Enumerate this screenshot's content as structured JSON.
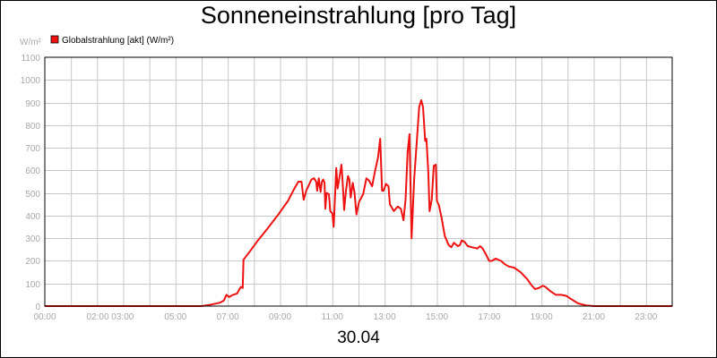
{
  "chart_data": {
    "type": "line",
    "title": "Sonneneinstrahlung [pro Tag]",
    "date": "30.04",
    "ylabel": "W/m²",
    "ylim": [
      0,
      1100
    ],
    "yticks": [
      0,
      100,
      200,
      300,
      400,
      500,
      600,
      700,
      800,
      900,
      1000,
      1100
    ],
    "xlim": [
      0,
      24
    ],
    "xticks": [
      {
        "label": "00:00",
        "x": 0
      },
      {
        "label": "02:00 03:00",
        "x": 2.5
      },
      {
        "label": "05:00",
        "x": 5
      },
      {
        "label": "07:00",
        "x": 7
      },
      {
        "label": "09:00",
        "x": 9
      },
      {
        "label": "11:00",
        "x": 11
      },
      {
        "label": "13:00",
        "x": 13
      },
      {
        "label": "15:00",
        "x": 15
      },
      {
        "label": "17:00",
        "x": 17
      },
      {
        "label": "19:00",
        "x": 19
      },
      {
        "label": "21:00",
        "x": 21
      },
      {
        "label": "23:00",
        "x": 23
      }
    ],
    "grid": true,
    "legend_position": "top-left",
    "series": [
      {
        "name": "Globalstrahlung [akt] (W/m²)",
        "color": "#ee1111",
        "points": [
          [
            0.0,
            0
          ],
          [
            6.0,
            0
          ],
          [
            6.3,
            5
          ],
          [
            6.7,
            15
          ],
          [
            6.85,
            25
          ],
          [
            6.95,
            50
          ],
          [
            7.05,
            40
          ],
          [
            7.2,
            50
          ],
          [
            7.35,
            55
          ],
          [
            7.45,
            75
          ],
          [
            7.5,
            85
          ],
          [
            7.57,
            80
          ],
          [
            7.6,
            205
          ],
          [
            7.9,
            250
          ],
          [
            8.15,
            290
          ],
          [
            8.5,
            340
          ],
          [
            8.9,
            400
          ],
          [
            9.3,
            465
          ],
          [
            9.55,
            520
          ],
          [
            9.7,
            550
          ],
          [
            9.82,
            550
          ],
          [
            9.9,
            470
          ],
          [
            10.0,
            510
          ],
          [
            10.2,
            560
          ],
          [
            10.3,
            565
          ],
          [
            10.38,
            550
          ],
          [
            10.42,
            510
          ],
          [
            10.48,
            565
          ],
          [
            10.55,
            505
          ],
          [
            10.6,
            550
          ],
          [
            10.65,
            560
          ],
          [
            10.7,
            545
          ],
          [
            10.73,
            430
          ],
          [
            10.78,
            500
          ],
          [
            10.87,
            495
          ],
          [
            10.92,
            420
          ],
          [
            11.0,
            410
          ],
          [
            11.05,
            350
          ],
          [
            11.15,
            610
          ],
          [
            11.2,
            520
          ],
          [
            11.3,
            590
          ],
          [
            11.35,
            625
          ],
          [
            11.4,
            535
          ],
          [
            11.45,
            425
          ],
          [
            11.52,
            510
          ],
          [
            11.6,
            575
          ],
          [
            11.65,
            560
          ],
          [
            11.7,
            480
          ],
          [
            11.78,
            545
          ],
          [
            11.85,
            500
          ],
          [
            11.92,
            405
          ],
          [
            12.02,
            460
          ],
          [
            12.18,
            495
          ],
          [
            12.3,
            565
          ],
          [
            12.4,
            555
          ],
          [
            12.52,
            530
          ],
          [
            12.62,
            590
          ],
          [
            12.75,
            660
          ],
          [
            12.83,
            740
          ],
          [
            12.9,
            510
          ],
          [
            12.96,
            510
          ],
          [
            13.05,
            540
          ],
          [
            13.15,
            530
          ],
          [
            13.2,
            450
          ],
          [
            13.35,
            420
          ],
          [
            13.5,
            440
          ],
          [
            13.62,
            430
          ],
          [
            13.72,
            380
          ],
          [
            13.8,
            470
          ],
          [
            13.88,
            680
          ],
          [
            13.95,
            760
          ],
          [
            14.03,
            300
          ],
          [
            14.13,
            560
          ],
          [
            14.25,
            760
          ],
          [
            14.32,
            880
          ],
          [
            14.4,
            910
          ],
          [
            14.47,
            880
          ],
          [
            14.55,
            730
          ],
          [
            14.6,
            740
          ],
          [
            14.67,
            590
          ],
          [
            14.72,
            420
          ],
          [
            14.8,
            470
          ],
          [
            14.88,
            620
          ],
          [
            14.96,
            625
          ],
          [
            15.0,
            465
          ],
          [
            15.08,
            445
          ],
          [
            15.18,
            390
          ],
          [
            15.3,
            310
          ],
          [
            15.45,
            270
          ],
          [
            15.55,
            260
          ],
          [
            15.65,
            280
          ],
          [
            15.8,
            265
          ],
          [
            15.88,
            270
          ],
          [
            15.95,
            290
          ],
          [
            16.05,
            285
          ],
          [
            16.18,
            265
          ],
          [
            16.35,
            260
          ],
          [
            16.55,
            255
          ],
          [
            16.65,
            265
          ],
          [
            16.75,
            255
          ],
          [
            16.87,
            230
          ],
          [
            17.0,
            200
          ],
          [
            17.1,
            200
          ],
          [
            17.25,
            210
          ],
          [
            17.45,
            200
          ],
          [
            17.6,
            185
          ],
          [
            17.75,
            175
          ],
          [
            17.95,
            170
          ],
          [
            18.2,
            150
          ],
          [
            18.45,
            120
          ],
          [
            18.6,
            95
          ],
          [
            18.75,
            75
          ],
          [
            18.9,
            80
          ],
          [
            19.05,
            90
          ],
          [
            19.15,
            85
          ],
          [
            19.35,
            65
          ],
          [
            19.55,
            50
          ],
          [
            19.75,
            50
          ],
          [
            19.95,
            45
          ],
          [
            20.15,
            30
          ],
          [
            20.4,
            12
          ],
          [
            20.7,
            3
          ],
          [
            21.0,
            0
          ],
          [
            24.0,
            0
          ]
        ]
      }
    ]
  }
}
